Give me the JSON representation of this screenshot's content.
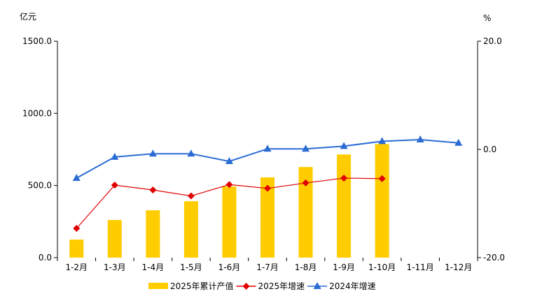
{
  "chart_data": {
    "type": "bar+line",
    "categories": [
      "1-2月",
      "1-3月",
      "1-4月",
      "1-5月",
      "1-6月",
      "1-7月",
      "1-8月",
      "1-9月",
      "1-10月",
      "1-11月",
      "1-12月"
    ],
    "y_left": {
      "label": "亿元",
      "ylim": [
        0,
        1500
      ],
      "ticks": [
        "0.0",
        "500.0",
        "1000.0",
        "1500.0"
      ]
    },
    "y_right": {
      "label": "%",
      "ylim": [
        -20,
        20
      ],
      "ticks": [
        "-20.0",
        "0.0",
        "20.0"
      ]
    },
    "grid": false,
    "legend_placement": "bottom",
    "series": [
      {
        "name": "2025年累计产值",
        "type": "bar",
        "axis": "left",
        "color": "#FFCC00",
        "values": [
          125,
          261,
          328,
          391,
          493,
          556,
          628,
          715,
          787,
          null,
          null
        ]
      },
      {
        "name": "2025年增速",
        "type": "line",
        "axis": "right",
        "marker": "diamond",
        "color": "#E00000",
        "values": [
          -14.6,
          -6.6,
          -7.5,
          -8.6,
          -6.5,
          -7.2,
          -6.2,
          -5.3,
          -5.4,
          null,
          null
        ]
      },
      {
        "name": "2024年增速",
        "type": "line",
        "axis": "right",
        "marker": "triangle",
        "color": "#2B6CD4",
        "values": [
          -5.3,
          -1.4,
          -0.8,
          -0.8,
          -2.2,
          0.1,
          0.1,
          0.6,
          1.5,
          1.8,
          1.2
        ]
      }
    ]
  }
}
